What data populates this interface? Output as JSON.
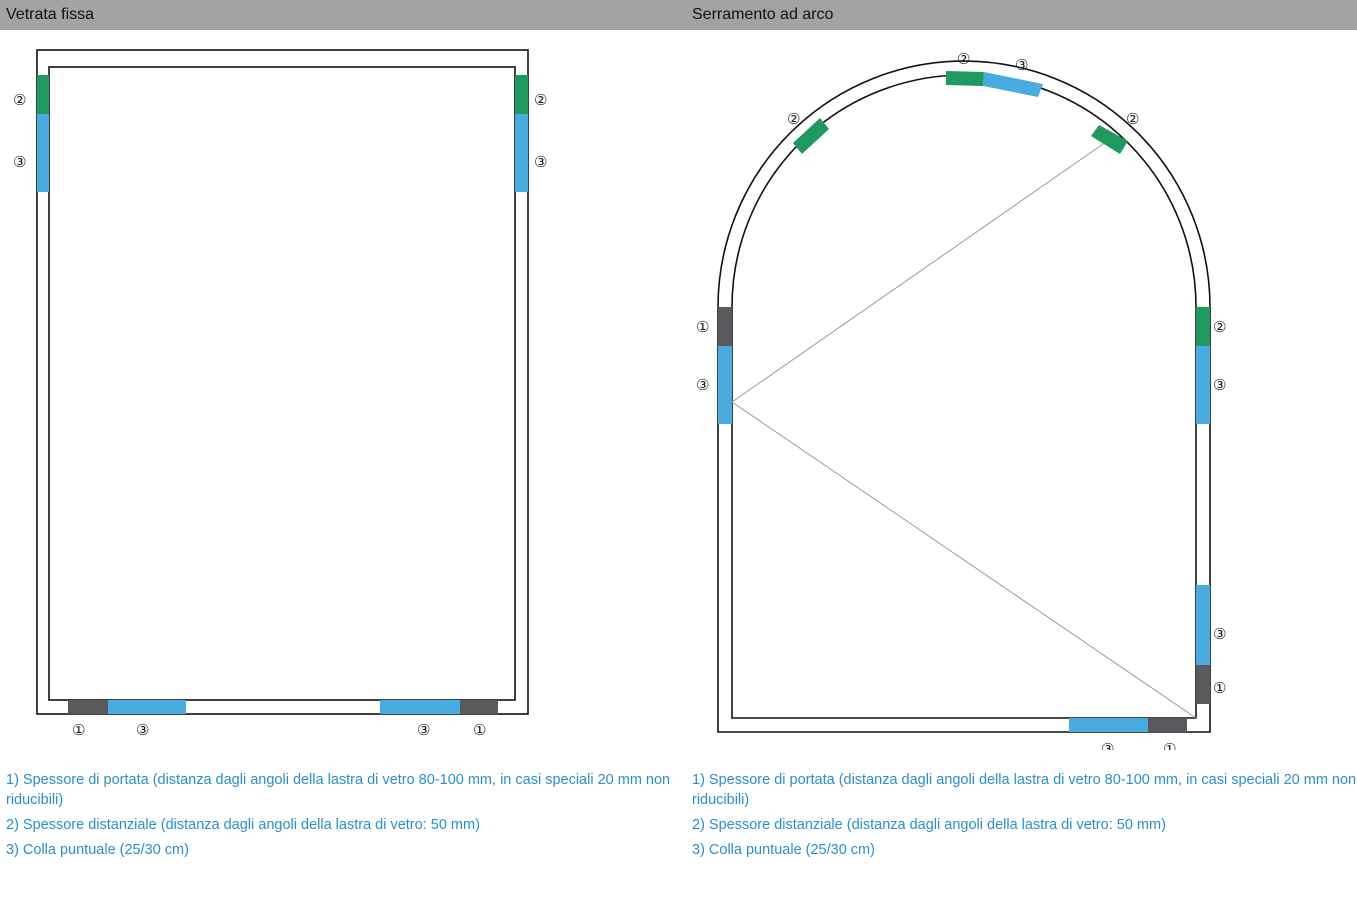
{
  "panels": {
    "left": {
      "title": "Vetrata fissa"
    },
    "right": {
      "title": "Serramento ad arco"
    }
  },
  "markers": {
    "one": "①",
    "two": "②",
    "three": "③"
  },
  "legend": {
    "item1": "1) Spessore di portata (distanza dagli angoli della lastra di vetro 80-100 mm, in casi speciali 20 mm non riducibili)",
    "item2": "2) Spessore distanziale (distanza dagli angoli della lastra di vetro: 50 mm)",
    "item3": "3) Colla puntuale (25/30 cm)"
  },
  "colors": {
    "header_bg": "#a3a3a3",
    "bearing_pad": "#5a5a5e",
    "spacer_pad": "#1f9a5e",
    "glue_dot": "#48ace0",
    "legend_text": "#2a8fd0"
  }
}
